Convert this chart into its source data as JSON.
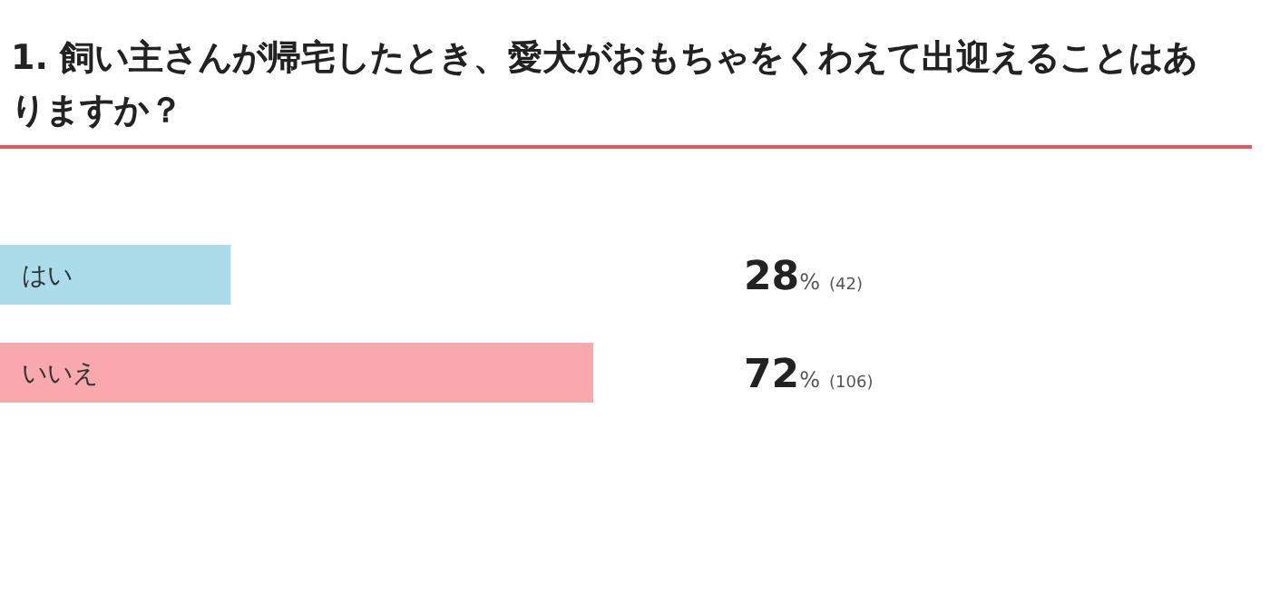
{
  "chart_data": {
    "type": "bar",
    "orientation": "horizontal",
    "title": "1. 飼い主さんが帰宅したとき、愛犬がおもちゃをくわえて出迎えることはありますか？",
    "categories": [
      "はい",
      "いいえ"
    ],
    "values": [
      28,
      72
    ],
    "colors": [
      "#aadde9",
      "#f9a9ae"
    ],
    "value_labels": [
      "28% (42)",
      "72% (106)"
    ],
    "tick_labels": false
  }
}
